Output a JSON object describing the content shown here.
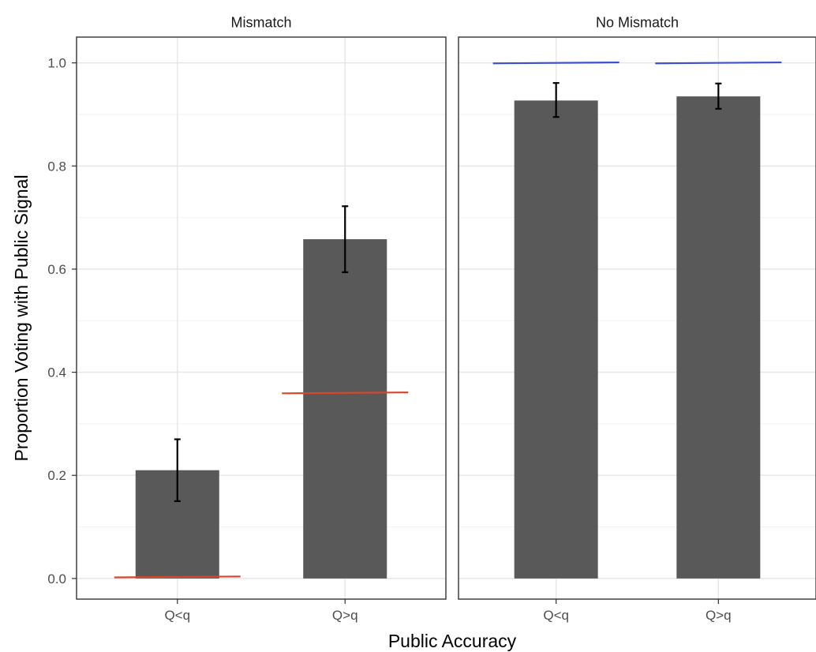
{
  "chart_data": {
    "type": "bar",
    "xlabel": "Public Accuracy",
    "ylabel": "Proportion Voting with Public Signal",
    "ylim": [
      -0.04,
      1.05
    ],
    "yticks": [
      0.0,
      0.2,
      0.4,
      0.6,
      0.8,
      1.0
    ],
    "ytick_labels": [
      "0.0",
      "0.2",
      "0.4",
      "0.6",
      "0.8",
      "1.0"
    ],
    "grid": true,
    "bar_color": "#595959",
    "error_bar_color": "#000000",
    "panels": [
      {
        "label": "Mismatch",
        "categories": [
          "Q<q",
          "Q>q"
        ],
        "values": [
          0.21,
          0.658
        ],
        "error_low": [
          0.15,
          0.594
        ],
        "error_high": [
          0.27,
          0.722
        ],
        "reference": [
          0.003,
          0.36
        ],
        "reference_color": "#d9472b"
      },
      {
        "label": "No Mismatch",
        "categories": [
          "Q<q",
          "Q>q"
        ],
        "values": [
          0.927,
          0.935
        ],
        "error_low": [
          0.895,
          0.911
        ],
        "error_high": [
          0.961,
          0.96
        ],
        "reference": [
          1.0,
          1.0
        ],
        "reference_color": "#3a4fd6"
      }
    ]
  }
}
